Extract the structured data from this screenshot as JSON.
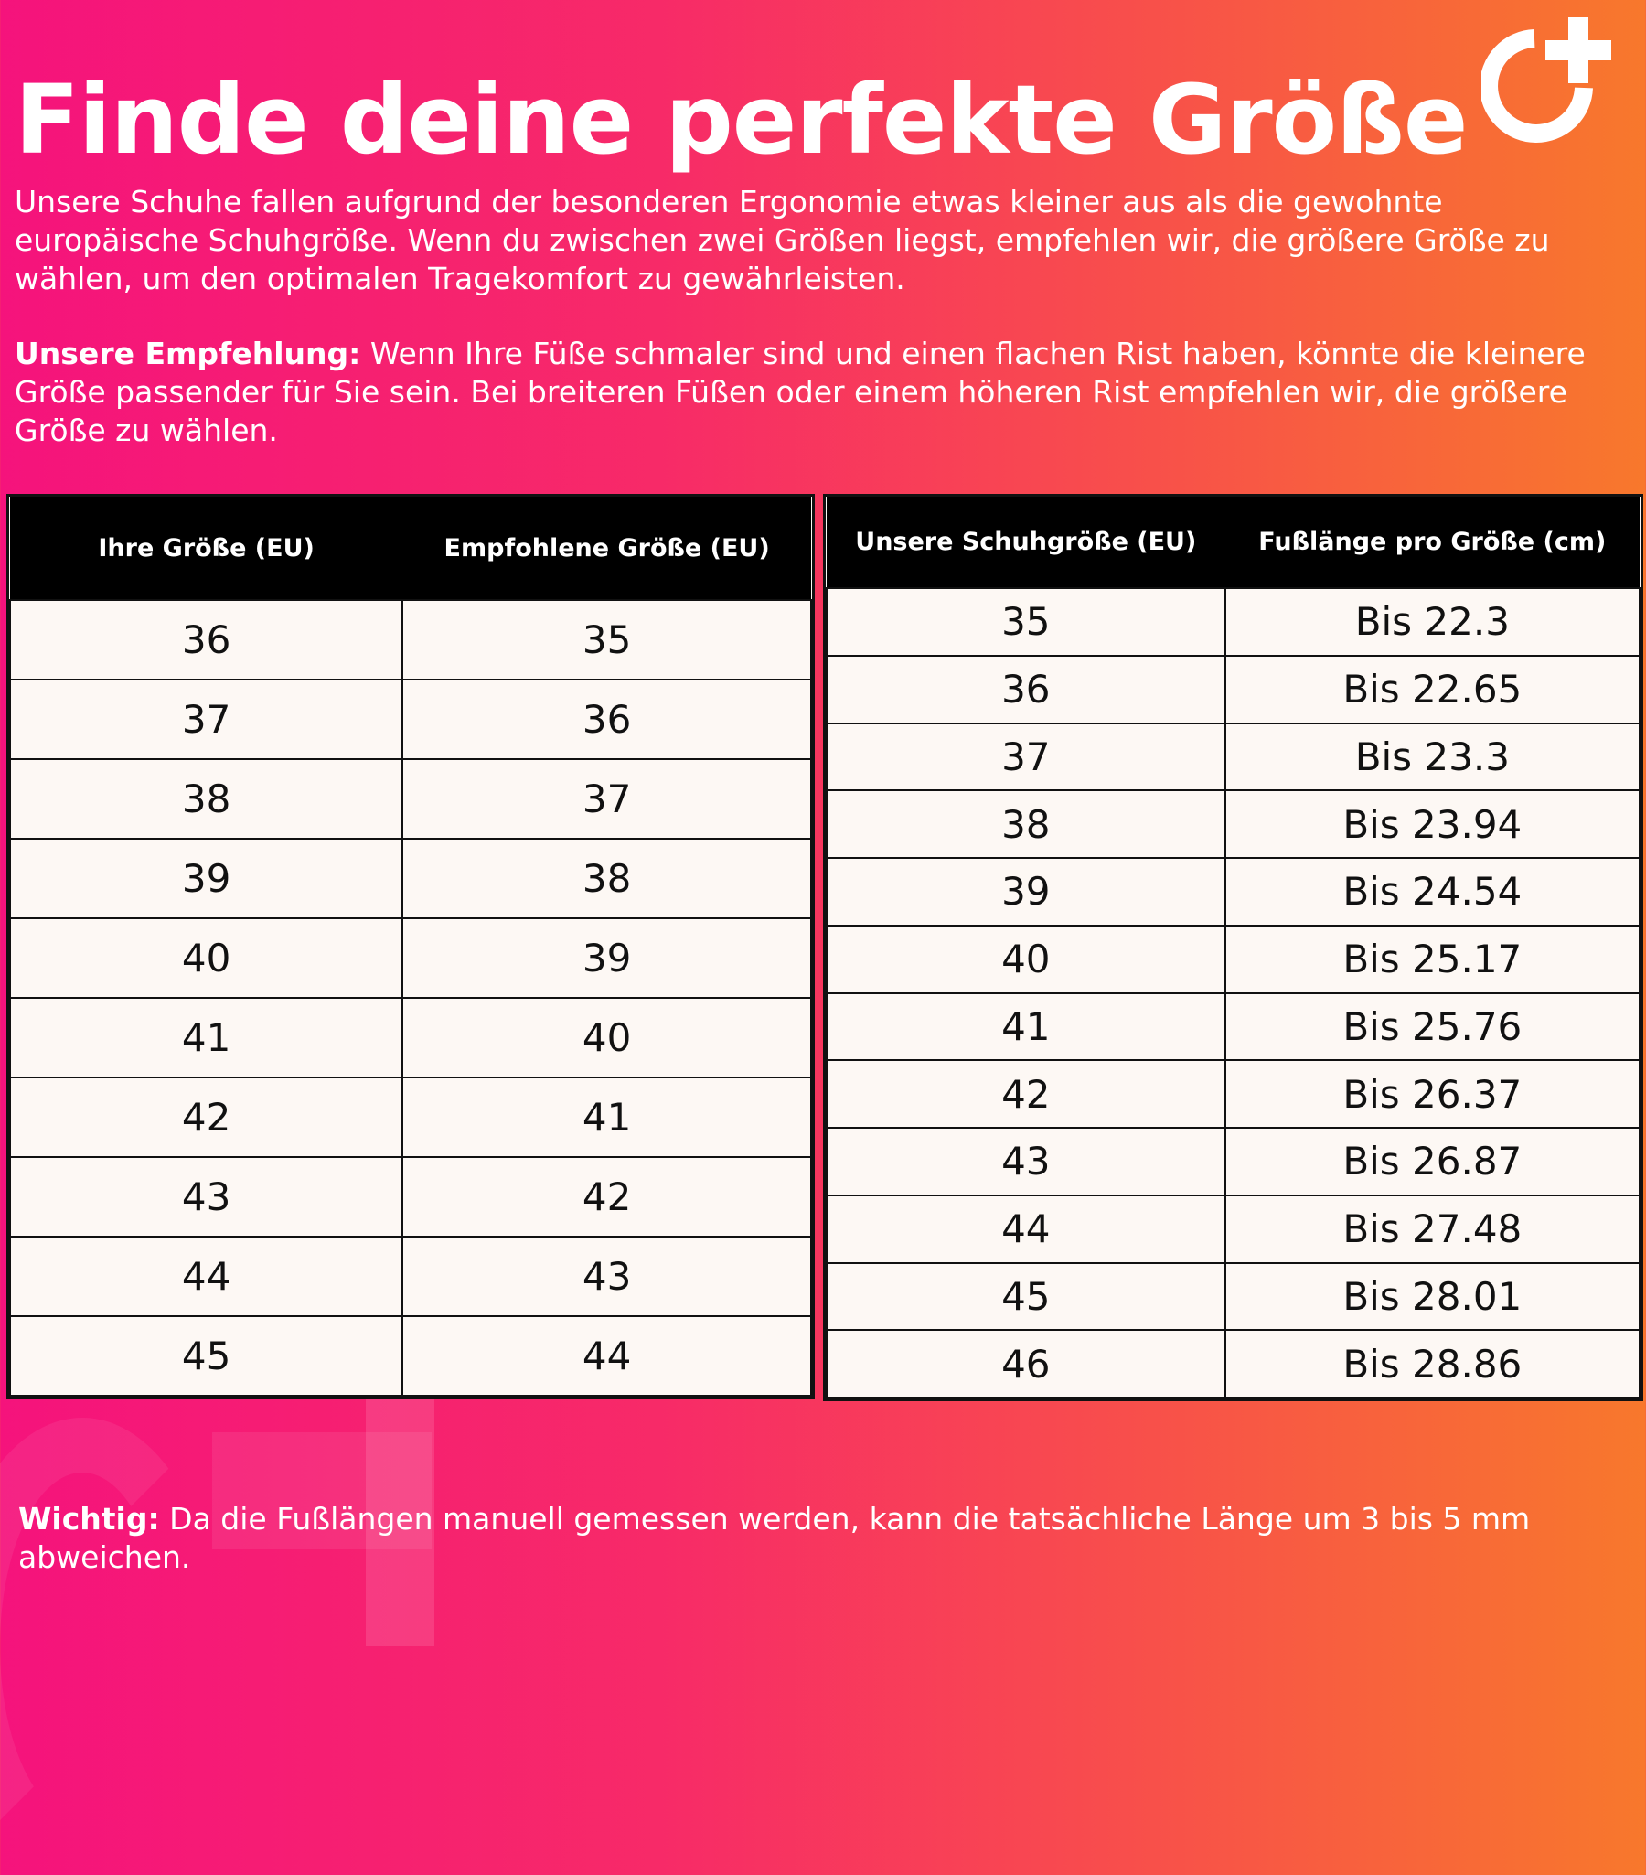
{
  "title": "Finde deine perfekte Größe",
  "intro": "Unsere Schuhe fallen aufgrund der besonderen Ergonomie etwas kleiner aus als die gewohnte europäische Schuhgröße. Wenn du zwischen zwei Größen liegst, empfehlen wir, die größere Größe zu wählen, um den optimalen Tragekomfort zu gewährleisten.",
  "recommendation": {
    "label": "Unsere Empfehlung:",
    "text": " Wenn Ihre Füße schmaler sind und einen flachen Rist haben, könnte die kleinere Größe passender für Sie sein. Bei breiteren Füßen oder einem höheren Rist empfehlen wir, die größere Größe zu wählen."
  },
  "table_left": {
    "headers": [
      "Ihre Größe (EU)",
      "Empfohlene Größe (EU)"
    ],
    "rows": [
      [
        "36",
        "35"
      ],
      [
        "37",
        "36"
      ],
      [
        "38",
        "37"
      ],
      [
        "39",
        "38"
      ],
      [
        "40",
        "39"
      ],
      [
        "41",
        "40"
      ],
      [
        "42",
        "41"
      ],
      [
        "43",
        "42"
      ],
      [
        "44",
        "43"
      ],
      [
        "45",
        "44"
      ]
    ]
  },
  "table_right": {
    "headers": [
      "Unsere Schuhgröße (EU)",
      "Fußlänge pro Größe (cm)"
    ],
    "rows": [
      [
        "35",
        "Bis 22.3"
      ],
      [
        "36",
        "Bis 22.65"
      ],
      [
        "37",
        "Bis 23.3"
      ],
      [
        "38",
        "Bis 23.94"
      ],
      [
        "39",
        "Bis 24.54"
      ],
      [
        "40",
        "Bis 25.17"
      ],
      [
        "41",
        "Bis 25.76"
      ],
      [
        "42",
        "Bis 26.37"
      ],
      [
        "43",
        "Bis 26.87"
      ],
      [
        "44",
        "Bis 27.48"
      ],
      [
        "45",
        "Bis 28.01"
      ],
      [
        "46",
        "Bis 28.86"
      ]
    ]
  },
  "note": {
    "label": "Wichtig:",
    "text": " Da die Fußlängen manuell gemessen werden, kann die tatsächliche Länge um 3 bis 5 mm abweichen."
  },
  "logo_icon": "circle-plus-logo",
  "colors": {
    "gradient_start": "#f5137c",
    "gradient_end": "#f8782c",
    "header_bg": "#000000",
    "cell_bg": "#fdf8f4"
  }
}
